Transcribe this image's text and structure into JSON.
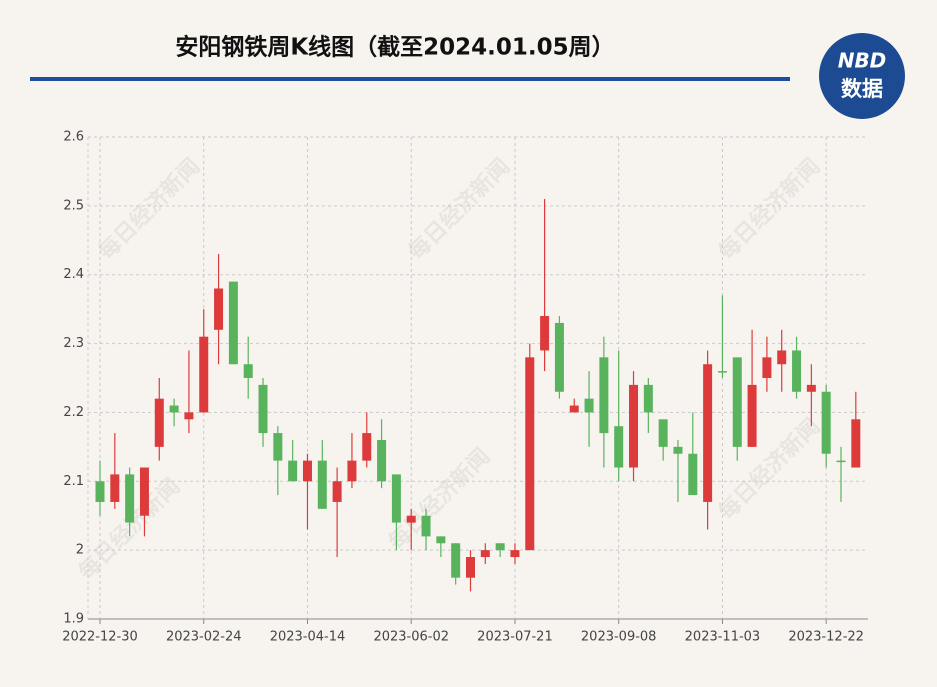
{
  "chart_data": {
    "type": "candlestick",
    "title": "安阳钢铁周K线图（截至2024.01.05周）",
    "logo": {
      "top": "NBD",
      "bottom": "数据"
    },
    "watermark": "每日经济新闻",
    "categories": [
      "2022-12-30",
      null,
      null,
      null,
      null,
      null,
      null,
      "2023-02-24",
      null,
      null,
      null,
      null,
      null,
      null,
      "2023-04-14",
      null,
      null,
      null,
      null,
      null,
      null,
      "2023-06-02",
      null,
      null,
      null,
      null,
      null,
      null,
      "2023-07-21",
      null,
      null,
      null,
      null,
      null,
      null,
      "2023-09-08",
      null,
      null,
      null,
      null,
      null,
      null,
      "2023-11-03",
      null,
      null,
      null,
      null,
      null,
      null,
      "2023-12-22",
      null,
      null
    ],
    "open": [
      2.1,
      2.07,
      2.11,
      2.05,
      2.15,
      2.21,
      2.19,
      2.2,
      2.32,
      2.39,
      2.27,
      2.24,
      2.17,
      2.13,
      2.1,
      2.13,
      2.07,
      2.1,
      2.13,
      2.16,
      2.11,
      2.04,
      2.05,
      2.02,
      2.01,
      1.96,
      1.99,
      2.01,
      1.99,
      2.0,
      2.29,
      2.33,
      2.2,
      2.22,
      2.28,
      2.18,
      2.12,
      2.24,
      2.19,
      2.15,
      2.14,
      2.07,
      2.26,
      2.28,
      2.15,
      2.25,
      2.27,
      2.29,
      2.23,
      2.23,
      2.13,
      2.12
    ],
    "high": [
      2.13,
      2.17,
      2.12,
      2.12,
      2.25,
      2.22,
      2.29,
      2.35,
      2.43,
      2.39,
      2.31,
      2.25,
      2.18,
      2.16,
      2.14,
      2.16,
      2.12,
      2.17,
      2.2,
      2.19,
      2.11,
      2.06,
      2.06,
      2.02,
      2.01,
      2.0,
      2.01,
      2.01,
      2.01,
      2.3,
      2.51,
      2.34,
      2.22,
      2.26,
      2.31,
      2.29,
      2.26,
      2.25,
      2.19,
      2.16,
      2.2,
      2.29,
      2.37,
      2.28,
      2.32,
      2.31,
      2.32,
      2.31,
      2.27,
      2.24,
      2.15,
      2.23
    ],
    "low": [
      2.05,
      2.06,
      2.02,
      2.02,
      2.13,
      2.18,
      2.17,
      2.2,
      2.27,
      2.27,
      2.22,
      2.15,
      2.08,
      2.1,
      2.03,
      2.06,
      1.99,
      2.09,
      2.12,
      2.09,
      2.0,
      2.0,
      2.0,
      1.99,
      1.95,
      1.94,
      1.98,
      1.99,
      1.98,
      2.0,
      2.26,
      2.22,
      2.2,
      2.15,
      2.12,
      2.1,
      2.1,
      2.17,
      2.13,
      2.07,
      2.08,
      2.03,
      2.25,
      2.13,
      2.15,
      2.23,
      2.23,
      2.22,
      2.18,
      2.12,
      2.07,
      2.12
    ],
    "close": [
      2.07,
      2.11,
      2.04,
      2.12,
      2.22,
      2.2,
      2.2,
      2.31,
      2.38,
      2.27,
      2.25,
      2.17,
      2.13,
      2.1,
      2.13,
      2.06,
      2.1,
      2.13,
      2.17,
      2.1,
      2.04,
      2.05,
      2.02,
      2.01,
      1.96,
      1.99,
      2.0,
      2.0,
      2.0,
      2.28,
      2.34,
      2.23,
      2.21,
      2.2,
      2.17,
      2.12,
      2.24,
      2.2,
      2.15,
      2.14,
      2.08,
      2.27,
      2.26,
      2.15,
      2.24,
      2.28,
      2.29,
      2.23,
      2.24,
      2.14,
      2.13,
      2.19
    ],
    "up_color": "#dd3b3b",
    "down_color": "#58b35c",
    "ylim": [
      1.9,
      2.6
    ],
    "yticks": [
      {
        "value": 1.9,
        "label": "1.9"
      },
      2,
      {
        "value": 2.1,
        "label": "2.1"
      },
      {
        "value": 2.2,
        "label": "2.2"
      },
      {
        "value": 2.3,
        "label": "2.3"
      },
      {
        "value": 2.4,
        "label": "2.4"
      },
      {
        "value": 2.5,
        "label": "2.5"
      },
      {
        "value": 2.6,
        "label": "2.6"
      }
    ],
    "grid": true
  }
}
